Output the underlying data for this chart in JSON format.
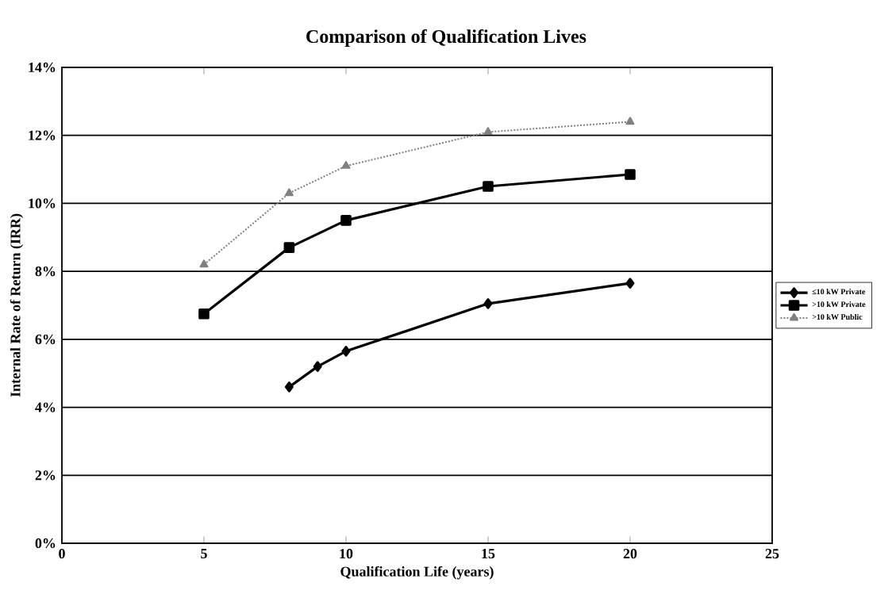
{
  "chart_data": {
    "type": "line",
    "title": "Comparison of Qualification Lives",
    "xlabel": "Qualification Life (years)",
    "ylabel": "Internal Rate of Return (IRR)",
    "series": [
      {
        "name": "≤10 kW Private",
        "color": "#000000",
        "marker": "diamond",
        "line_style": "solid",
        "x": [
          8,
          9,
          10,
          15,
          20
        ],
        "values": [
          4.6,
          5.2,
          5.65,
          7.05,
          7.65
        ]
      },
      {
        "name": ">10 kW Private",
        "color": "#000000",
        "marker": "square",
        "line_style": "solid",
        "x": [
          5,
          8,
          10,
          15,
          20
        ],
        "values": [
          6.75,
          8.7,
          9.5,
          10.5,
          10.85
        ]
      },
      {
        "name": ">10 kW Public",
        "color": "#808080",
        "marker": "triangle",
        "line_style": "dotted",
        "x": [
          5,
          8,
          10,
          15,
          20
        ],
        "values": [
          8.2,
          10.3,
          11.1,
          12.1,
          12.4
        ]
      }
    ],
    "xlim": [
      0,
      25
    ],
    "ylim": [
      0,
      14
    ],
    "xticks": [
      0,
      5,
      10,
      15,
      20,
      25
    ],
    "yticks": [
      {
        "value": 0,
        "label": "0%"
      },
      {
        "value": 2,
        "label": "2%"
      },
      {
        "value": 4,
        "label": "4%"
      },
      {
        "value": 6,
        "label": "6%"
      },
      {
        "value": 8,
        "label": "8%"
      },
      {
        "value": 10,
        "label": "10%"
      },
      {
        "value": 12,
        "label": "12%"
      },
      {
        "value": 14,
        "label": "14%"
      }
    ],
    "grid": "y",
    "legend": "right"
  }
}
